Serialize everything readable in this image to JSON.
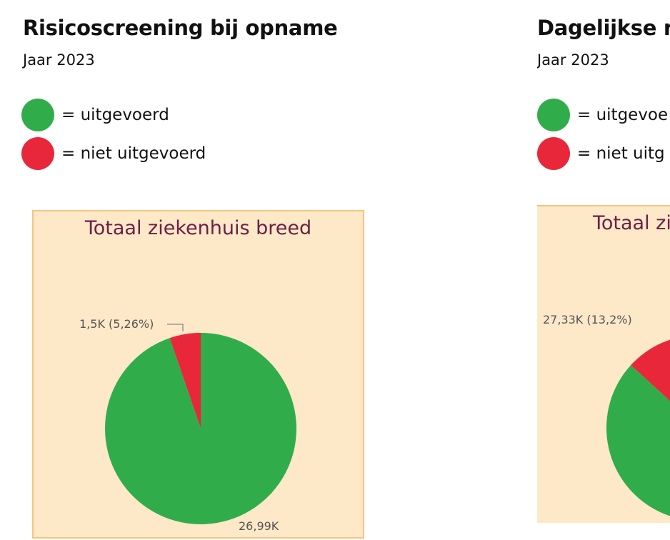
{
  "colors": {
    "uitgevoerd": "#30ad4a",
    "niet_uitgevoerd": "#e8283a",
    "chart_bg": "#fde8c8",
    "chart_border": "#f5c57f",
    "chart_title": "#6b2147"
  },
  "legend": {
    "uitgevoerd": "= uitgevoerd",
    "niet_uitgevoerd": "= niet uitgevoerd"
  },
  "left": {
    "title": "Risicoscreening bij opname",
    "subtitle": "Jaar 2023",
    "chart_title": "Totaal ziekenhuis breed",
    "label_niet": "1,5K (5,26%)",
    "label_uit": "26,99K"
  },
  "right": {
    "title": "Dagelijkse r",
    "subtitle": "Jaar 2023",
    "legend_uitgevoerd": "= uitgevoe",
    "legend_niet": "= niet uitg",
    "chart_title": "Totaal zi",
    "label_niet": "27,33K (13,2%)"
  },
  "chart_data": [
    {
      "type": "pie",
      "title": "Totaal ziekenhuis breed",
      "categories": [
        "niet uitgevoerd",
        "uitgevoerd"
      ],
      "values": [
        1.5,
        26.99
      ],
      "percentages": [
        5.26,
        94.74
      ],
      "unit": "K",
      "colors": [
        "#e8283a",
        "#30ad4a"
      ]
    },
    {
      "type": "pie",
      "title": "Totaal zi",
      "categories": [
        "niet uitgevoerd",
        "uitgevoerd"
      ],
      "values": [
        27.33,
        null
      ],
      "percentages": [
        13.2,
        86.8
      ],
      "unit": "K",
      "colors": [
        "#e8283a",
        "#30ad4a"
      ]
    }
  ]
}
